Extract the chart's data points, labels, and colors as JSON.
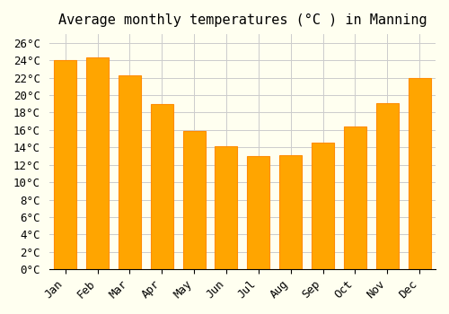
{
  "title": "Average monthly temperatures (°C ) in Manning",
  "months": [
    "Jan",
    "Feb",
    "Mar",
    "Apr",
    "May",
    "Jun",
    "Jul",
    "Aug",
    "Sep",
    "Oct",
    "Nov",
    "Dec"
  ],
  "values": [
    24.0,
    24.3,
    22.3,
    19.0,
    15.9,
    14.1,
    13.0,
    13.1,
    14.5,
    16.4,
    19.1,
    22.0
  ],
  "bar_color": "#FFA500",
  "bar_edge_color": "#FF8C00",
  "background_color": "#FFFFF0",
  "grid_color": "#CCCCCC",
  "ylim": [
    0,
    27
  ],
  "yticks": [
    0,
    2,
    4,
    6,
    8,
    10,
    12,
    14,
    16,
    18,
    20,
    22,
    24,
    26
  ],
  "title_fontsize": 11,
  "tick_fontsize": 9,
  "font_family": "monospace"
}
